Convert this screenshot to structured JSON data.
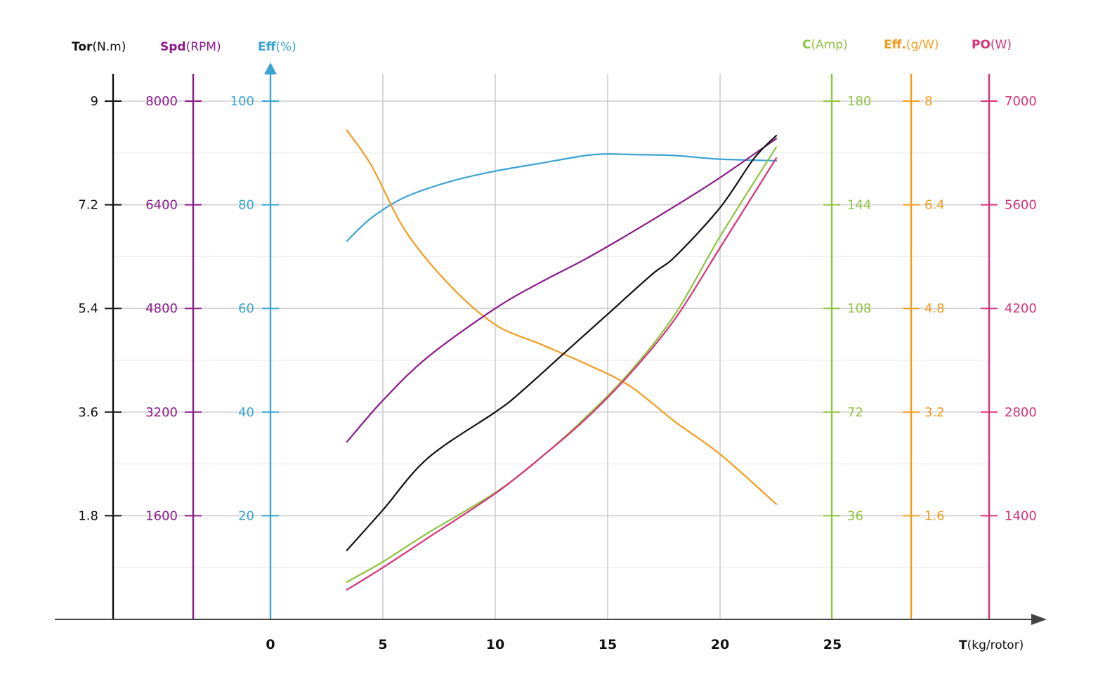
{
  "chart_data": {
    "type": "line",
    "x_axis": {
      "title_bold": "T",
      "title_unit": "(kg/rotor)",
      "ticks": [
        "0",
        "5",
        "10",
        "15",
        "20",
        "25"
      ],
      "tick_values": [
        0,
        5,
        10,
        15,
        20,
        25
      ],
      "range": [
        0,
        25
      ],
      "grid": true
    },
    "y_axes": [
      {
        "key": "tor",
        "title_bold": "Tor",
        "title_unit": "(N.m)",
        "color": "#111111",
        "ticks": [
          "9",
          "7.2",
          "5.4",
          "3.6",
          "1.8"
        ],
        "tick_values": [
          9,
          7.2,
          5.4,
          3.6,
          1.8
        ],
        "range": [
          0,
          9
        ],
        "side": "left"
      },
      {
        "key": "spd",
        "title_bold": "Spd",
        "title_unit": "(RPM)",
        "color": "#8b1a8b",
        "ticks": [
          "8000",
          "6400",
          "4800",
          "3200",
          "1600"
        ],
        "tick_values": [
          8000,
          6400,
          4800,
          3200,
          1600
        ],
        "range": [
          0,
          8000
        ],
        "side": "left"
      },
      {
        "key": "eff",
        "title_bold": "Eff",
        "title_unit": "(%)",
        "color": "#3aa3d3",
        "ticks": [
          "100",
          "80",
          "60",
          "40",
          "20"
        ],
        "tick_values": [
          100,
          80,
          60,
          40,
          20
        ],
        "range": [
          0,
          100
        ],
        "side": "left"
      },
      {
        "key": "c",
        "title_bold": "C",
        "title_unit": "(Amp)",
        "color": "#8dc43f",
        "ticks": [
          "180",
          "144",
          "108",
          "72",
          "36"
        ],
        "tick_values": [
          180,
          144,
          108,
          72,
          36
        ],
        "range": [
          0,
          180
        ],
        "side": "right"
      },
      {
        "key": "effg",
        "title_bold": "Eff.",
        "title_unit": "(g/W)",
        "color": "#f39c1e",
        "ticks": [
          "8",
          "6.4",
          "4.8",
          "3.2",
          "1.6"
        ],
        "tick_values": [
          8,
          6.4,
          4.8,
          3.2,
          1.6
        ],
        "range": [
          0,
          8
        ],
        "side": "right"
      },
      {
        "key": "po",
        "title_bold": "PO",
        "title_unit": "(W)",
        "color": "#d6337a",
        "ticks": [
          "7000",
          "5600",
          "4200",
          "2800",
          "1400"
        ],
        "tick_values": [
          7000,
          5600,
          4200,
          2800,
          1400
        ],
        "range": [
          0,
          7000
        ],
        "side": "right"
      }
    ],
    "series": [
      {
        "axis": "eff",
        "color": "#3aa3d3",
        "x": [
          3.4,
          4.5,
          6,
          8,
          10,
          12,
          14,
          15,
          16,
          18,
          20,
          22.5
        ],
        "y": [
          73,
          77.5,
          81.5,
          84.5,
          86.5,
          88,
          89.5,
          89.8,
          89.7,
          89.5,
          88.8,
          88.5
        ]
      },
      {
        "axis": "effg",
        "color": "#f39c1e",
        "x": [
          3.4,
          4.5,
          6,
          8,
          10,
          12,
          14,
          16,
          18,
          20,
          22.5
        ],
        "y": [
          7.55,
          7.0,
          6.0,
          5.15,
          4.55,
          4.25,
          3.95,
          3.6,
          3.05,
          2.55,
          1.78
        ]
      },
      {
        "axis": "spd",
        "color": "#8b1a8b",
        "x": [
          3.4,
          5,
          7,
          10,
          12,
          14,
          16,
          18,
          20,
          22.5
        ],
        "y": [
          2740,
          3380,
          4050,
          4800,
          5200,
          5560,
          5960,
          6380,
          6820,
          7420
        ]
      },
      {
        "axis": "tor",
        "color": "#111111",
        "x": [
          3.4,
          5,
          7,
          10,
          11,
          13,
          15,
          17,
          18,
          20,
          21.5,
          22.5
        ],
        "y": [
          1.2,
          1.9,
          2.8,
          3.6,
          3.9,
          4.6,
          5.3,
          6.0,
          6.3,
          7.15,
          8.0,
          8.4
        ]
      },
      {
        "axis": "c",
        "color": "#8dc43f",
        "x": [
          3.4,
          5,
          7,
          10,
          12,
          14,
          16,
          18,
          20,
          22.5
        ],
        "y": [
          13,
          20,
          30,
          44,
          56,
          70,
          86,
          106,
          133,
          164
        ]
      },
      {
        "axis": "po",
        "color": "#d6337a",
        "x": [
          3.4,
          5,
          7,
          10,
          12,
          14,
          16,
          18,
          20,
          22.5
        ],
        "y": [
          400,
          700,
          1100,
          1700,
          2180,
          2700,
          3320,
          4060,
          5020,
          6230
        ]
      }
    ]
  }
}
